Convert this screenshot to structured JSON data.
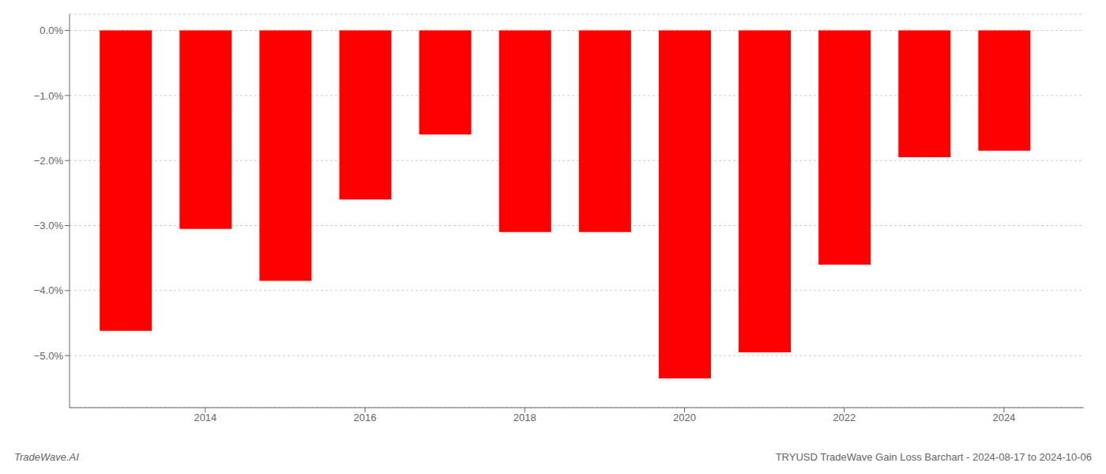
{
  "chart_data": {
    "type": "bar",
    "x": [
      2013,
      2014,
      2015,
      2016,
      2017,
      2018,
      2019,
      2020,
      2021,
      2022,
      2023,
      2024
    ],
    "values": [
      -4.62,
      -3.05,
      -3.85,
      -2.6,
      -1.6,
      -3.1,
      -3.1,
      -5.35,
      -4.95,
      -3.6,
      -1.95,
      -1.85
    ],
    "color": "#ff0000",
    "xlim": [
      2012.3,
      2025.0
    ],
    "xticks": [
      2014,
      2016,
      2018,
      2020,
      2022,
      2024
    ],
    "ylim": [
      -5.8,
      0.25
    ],
    "yticks": [
      {
        "value": 0.0,
        "label": "0.0%"
      },
      {
        "value": -1.0,
        "label": "−1.0%"
      },
      {
        "value": -2.0,
        "label": "−2.0%"
      },
      {
        "value": -3.0,
        "label": "−3.0%"
      },
      {
        "value": -4.0,
        "label": "−4.0%"
      },
      {
        "value": -5.0,
        "label": "−5.0%"
      }
    ],
    "grid": true,
    "annotations": [
      "TradeWave.AI",
      "TRYUSD TradeWave Gain Loss Barchart - 2024-08-17 to 2024-10-06"
    ]
  }
}
